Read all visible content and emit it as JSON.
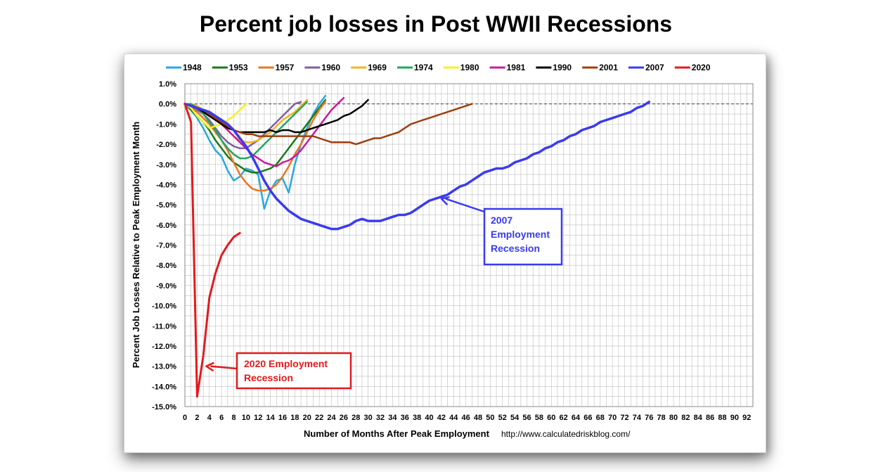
{
  "title": "Percent job losses in Post WWII Recessions",
  "chart_data": {
    "type": "line",
    "xlabel": "Number of Months After Peak Employment",
    "ylabel": "Percent Job Losses Relative to Peak Employment Month",
    "source": "http://www.calculatedriskblog.com/",
    "xlim": [
      0,
      93
    ],
    "ylim": [
      -15,
      1
    ],
    "x_ticks": [
      0,
      2,
      4,
      6,
      8,
      10,
      12,
      14,
      16,
      18,
      20,
      22,
      24,
      26,
      28,
      30,
      32,
      34,
      36,
      38,
      40,
      42,
      44,
      46,
      48,
      50,
      52,
      54,
      56,
      58,
      60,
      62,
      64,
      66,
      68,
      70,
      72,
      74,
      76,
      78,
      80,
      82,
      84,
      86,
      88,
      90,
      92
    ],
    "y_ticks": [
      1,
      0,
      -1,
      -2,
      -3,
      -4,
      -5,
      -6,
      -7,
      -8,
      -9,
      -10,
      -11,
      -12,
      -13,
      -14,
      -15
    ],
    "y_tick_labels": [
      "1.0%",
      "0.0%",
      "-1.0%",
      "-2.0%",
      "-3.0%",
      "-4.0%",
      "-5.0%",
      "-6.0%",
      "-7.0%",
      "-8.0%",
      "-9.0%",
      "-10.0%",
      "-11.0%",
      "-12.0%",
      "-13.0%",
      "-14.0%",
      "-15.0%"
    ],
    "grid": true,
    "legend_position": "top",
    "series": [
      {
        "name": "1948",
        "color": "#29a8e0",
        "width": 2.5,
        "values": [
          0,
          -0.3,
          -0.7,
          -1.2,
          -1.8,
          -2.3,
          -2.6,
          -3.3,
          -3.8,
          -3.6,
          -3.2,
          -3.3,
          -3.5,
          -5.2,
          -4.3,
          -3.8,
          -3.7,
          -4.4,
          -3.0,
          -2.0,
          -1.2,
          -0.5,
          0.0,
          0.4
        ]
      },
      {
        "name": "1953",
        "color": "#1a7a1a",
        "width": 2.5,
        "values": [
          0,
          -0.3,
          -0.6,
          -0.9,
          -1.3,
          -1.8,
          -2.2,
          -2.6,
          -2.9,
          -3.1,
          -3.3,
          -3.4,
          -3.4,
          -3.3,
          -3.2,
          -3.0,
          -2.6,
          -2.2,
          -1.8,
          -1.4,
          -1.0,
          -0.6,
          -0.2,
          0.2
        ]
      },
      {
        "name": "1957",
        "color": "#e87722",
        "width": 2.5,
        "values": [
          0,
          -0.2,
          -0.4,
          -0.7,
          -1.0,
          -1.4,
          -1.8,
          -2.3,
          -2.9,
          -3.5,
          -3.9,
          -4.2,
          -4.3,
          -4.3,
          -4.2,
          -4.0,
          -3.6,
          -3.1,
          -2.5,
          -2.0,
          -1.4,
          -0.8,
          -0.3,
          0.1
        ]
      },
      {
        "name": "1960",
        "color": "#7f5fa3",
        "width": 2.5,
        "values": [
          0,
          -0.1,
          -0.3,
          -0.5,
          -0.8,
          -1.2,
          -1.6,
          -1.9,
          -2.1,
          -2.2,
          -2.2,
          -2.0,
          -1.8,
          -1.5,
          -1.2,
          -0.9,
          -0.6,
          -0.3,
          0.0,
          0.1
        ]
      },
      {
        "name": "1969",
        "color": "#f5b324",
        "width": 2.5,
        "values": [
          0,
          0,
          -0.1,
          -0.3,
          -0.5,
          -0.7,
          -1.0,
          -1.3,
          -1.6,
          -1.8,
          -1.9,
          -1.9,
          -1.8,
          -1.6,
          -1.4,
          -1.1,
          -0.8,
          -0.6,
          -0.4,
          -0.1,
          0.2
        ]
      },
      {
        "name": "1974",
        "color": "#1fa860",
        "width": 2.5,
        "values": [
          0,
          0.0,
          -0.2,
          -0.5,
          -0.9,
          -1.3,
          -1.8,
          -2.2,
          -2.5,
          -2.7,
          -2.7,
          -2.6,
          -2.3,
          -2.0,
          -1.7,
          -1.4,
          -1.1,
          -0.8,
          -0.5,
          -0.2,
          0.1
        ]
      },
      {
        "name": "1980",
        "color": "#f7f02a",
        "width": 2.5,
        "values": [
          0,
          -0.2,
          -0.6,
          -0.9,
          -1.2,
          -1.1,
          -1.0,
          -0.8,
          -0.6,
          -0.3,
          0.0
        ]
      },
      {
        "name": "1981",
        "color": "#c61c9e",
        "width": 2.5,
        "values": [
          0,
          -0.1,
          -0.2,
          -0.3,
          -0.5,
          -0.7,
          -1.0,
          -1.3,
          -1.6,
          -1.9,
          -2.2,
          -2.5,
          -2.7,
          -2.9,
          -3.0,
          -3.1,
          -2.9,
          -2.8,
          -2.6,
          -2.3,
          -1.9,
          -1.5,
          -1.1,
          -0.7,
          -0.3,
          0.0,
          0.3
        ]
      },
      {
        "name": "1990",
        "color": "#000000",
        "width": 2.5,
        "values": [
          0,
          -0.1,
          -0.2,
          -0.4,
          -0.6,
          -0.8,
          -1.0,
          -1.2,
          -1.3,
          -1.4,
          -1.4,
          -1.4,
          -1.4,
          -1.4,
          -1.3,
          -1.4,
          -1.3,
          -1.3,
          -1.4,
          -1.4,
          -1.3,
          -1.2,
          -1.1,
          -1.0,
          -0.9,
          -0.8,
          -0.6,
          -0.5,
          -0.3,
          -0.1,
          0.2
        ]
      },
      {
        "name": "2001",
        "color": "#9c3f0e",
        "width": 2.5,
        "values": [
          0,
          -0.1,
          -0.2,
          -0.3,
          -0.5,
          -0.7,
          -0.9,
          -1.1,
          -1.3,
          -1.4,
          -1.5,
          -1.5,
          -1.6,
          -1.6,
          -1.6,
          -1.6,
          -1.6,
          -1.6,
          -1.6,
          -1.6,
          -1.6,
          -1.6,
          -1.7,
          -1.8,
          -1.9,
          -1.9,
          -1.9,
          -1.9,
          -2.0,
          -1.9,
          -1.8,
          -1.7,
          -1.7,
          -1.6,
          -1.5,
          -1.4,
          -1.2,
          -1.0,
          -0.9,
          -0.8,
          -0.7,
          -0.6,
          -0.5,
          -0.4,
          -0.3,
          -0.2,
          -0.1,
          0.0
        ]
      },
      {
        "name": "2007",
        "color": "#3a3af0",
        "width": 3.5,
        "values": [
          0,
          -0.1,
          -0.2,
          -0.3,
          -0.4,
          -0.6,
          -0.8,
          -1.0,
          -1.3,
          -1.7,
          -2.1,
          -2.6,
          -3.2,
          -3.8,
          -4.3,
          -4.7,
          -5.0,
          -5.3,
          -5.5,
          -5.7,
          -5.8,
          -5.9,
          -6.0,
          -6.1,
          -6.2,
          -6.2,
          -6.1,
          -6.0,
          -5.8,
          -5.7,
          -5.8,
          -5.8,
          -5.8,
          -5.7,
          -5.6,
          -5.5,
          -5.5,
          -5.4,
          -5.2,
          -5.0,
          -4.8,
          -4.7,
          -4.6,
          -4.5,
          -4.3,
          -4.1,
          -4.0,
          -3.8,
          -3.6,
          -3.4,
          -3.3,
          -3.2,
          -3.2,
          -3.1,
          -2.9,
          -2.8,
          -2.7,
          -2.5,
          -2.4,
          -2.2,
          -2.1,
          -1.9,
          -1.8,
          -1.6,
          -1.5,
          -1.3,
          -1.2,
          -1.1,
          -0.9,
          -0.8,
          -0.7,
          -0.6,
          -0.5,
          -0.4,
          -0.2,
          -0.1,
          0.1
        ]
      },
      {
        "name": "2020",
        "color": "#e31a1c",
        "width": 3,
        "values": [
          0,
          -0.9,
          -14.5,
          -12.5,
          -9.6,
          -8.4,
          -7.5,
          -7.0,
          -6.6,
          -6.4
        ]
      }
    ],
    "annotations": [
      {
        "text_lines": [
          "2007",
          "Employment",
          "Recession"
        ],
        "color": "#3a3af0",
        "arrow_to": [
          42,
          -4.7
        ]
      },
      {
        "text_lines": [
          "2020 Employment",
          "Recession"
        ],
        "color": "#e31a1c",
        "arrow_to": [
          3.5,
          -13
        ]
      }
    ]
  }
}
